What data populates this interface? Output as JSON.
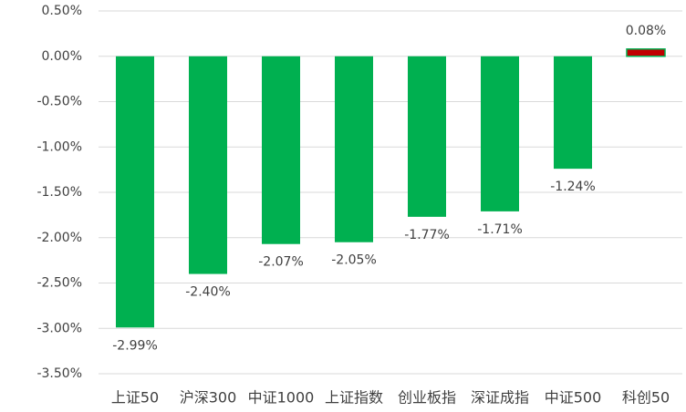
{
  "chart_data": {
    "type": "bar",
    "categories": [
      "上证50",
      "沪深300",
      "中证1000",
      "上证指数",
      "创业板指",
      "深证成指",
      "中证500",
      "科创50"
    ],
    "values": [
      -2.99,
      -2.4,
      -2.07,
      -2.05,
      -1.77,
      -1.71,
      -1.24,
      0.08
    ],
    "value_labels": [
      "-2.99%",
      "-2.40%",
      "-2.07%",
      "-2.05%",
      "-1.77%",
      "-1.71%",
      "-1.24%",
      "0.08%"
    ],
    "colors": [
      "#00b050",
      "#00b050",
      "#00b050",
      "#00b050",
      "#00b050",
      "#00b050",
      "#00b050",
      "#c00000"
    ],
    "ylim": [
      -3.5,
      0.5
    ],
    "yticks": [
      {
        "value": 0.5,
        "label": "0.50%"
      },
      {
        "value": 0,
        "label": "0.00%"
      },
      {
        "value": -0.5,
        "label": "-0.50%"
      },
      {
        "value": -1,
        "label": "-1.00%"
      },
      {
        "value": -1.5,
        "label": "-1.50%"
      },
      {
        "value": -2,
        "label": "-2.00%"
      },
      {
        "value": -2.5,
        "label": "-2.50%"
      },
      {
        "value": -3,
        "label": "-3.00%"
      },
      {
        "value": -3.5,
        "label": "-3.50%"
      }
    ],
    "grid": true
  }
}
